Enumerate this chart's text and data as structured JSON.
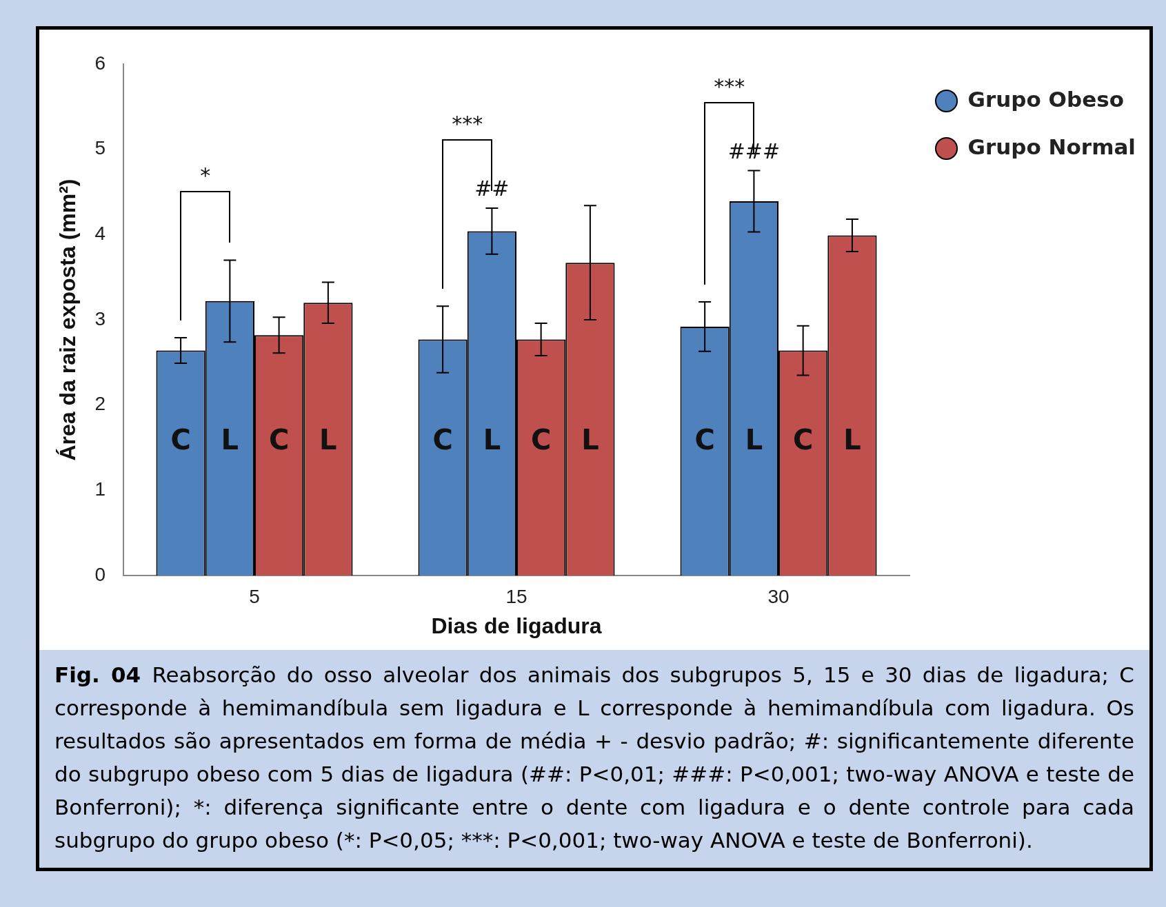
{
  "chart_data": {
    "type": "bar",
    "xlabel": "Dias de ligadura",
    "ylabel": "Área da raiz exposta (mm²)",
    "categories": [
      "5",
      "15",
      "30"
    ],
    "series": [
      {
        "name": "Grupo Obeso",
        "color": "#4f81bd",
        "values": [
          2.64,
          2.77,
          2.92
        ],
        "errors": [
          0.15,
          0.39,
          0.29
        ],
        "value_labels": [
          "C",
          "C",
          "C"
        ]
      },
      {
        "color": "#4f81bd",
        "values": [
          3.22,
          4.04,
          4.39
        ],
        "errors": [
          0.48,
          0.27,
          0.36
        ],
        "value_labels": [
          "L",
          "L",
          "L"
        ]
      },
      {
        "name": "Grupo Normal",
        "color": "#c0504d",
        "values": [
          2.82,
          2.77,
          2.64
        ],
        "errors": [
          0.21,
          0.19,
          0.29
        ],
        "value_labels": [
          "C",
          "C",
          "C"
        ]
      },
      {
        "color": "#c0504d",
        "values": [
          3.2,
          3.67,
          3.99
        ],
        "errors": [
          0.24,
          0.67,
          0.19
        ],
        "value_labels": [
          "L",
          "L",
          "L"
        ]
      }
    ],
    "ylim": [
      0,
      6
    ],
    "yticks": [
      0,
      1,
      2,
      3,
      4,
      5,
      6
    ],
    "grid": false,
    "legend": "top right",
    "annotations": [
      "*",
      "***",
      "##",
      "***",
      "###",
      "Fig. 04",
      "Reabsorção do osso alveolar dos animais dos subgrupos 5, 15 e 30 dias de ligadura; C corresponde à hemimandíbula sem ligadura e L corresponde à hemimandíbula com ligadura. Os resultados são apresentados em forma de média + - desvio padrão; #: significantemente diferente do subgrupo obeso com 5 dias de ligadura (##: P<0,01; ###: P<0,001; two-way ANOVA e teste de Bonferroni); *: diferença significante entre o dente com ligadura e o dente controle para cada subgrupo do grupo obeso (*: P<0,05; ***: P<0,001; two-way ANOVA e teste de Bonferroni)."
    ]
  }
}
